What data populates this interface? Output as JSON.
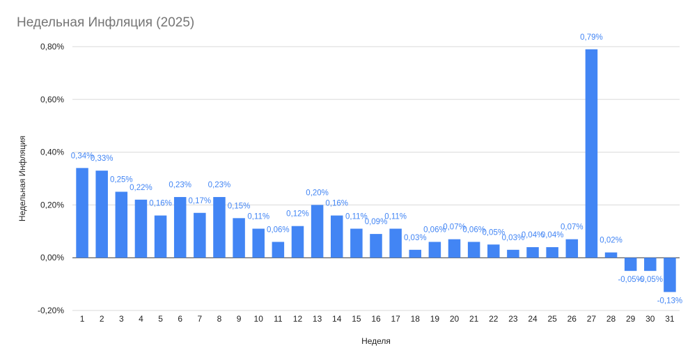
{
  "chart_data": {
    "type": "bar",
    "title": "Недельная Инфляция (2025)",
    "xlabel": "Неделя",
    "ylabel": "Недельная Инфляция",
    "categories": [
      "1",
      "2",
      "3",
      "4",
      "5",
      "6",
      "7",
      "8",
      "9",
      "10",
      "11",
      "12",
      "13",
      "14",
      "15",
      "16",
      "17",
      "18",
      "19",
      "20",
      "21",
      "22",
      "23",
      "24",
      "25",
      "26",
      "27",
      "28",
      "29",
      "30",
      "31"
    ],
    "values": [
      0.34,
      0.33,
      0.25,
      0.22,
      0.16,
      0.23,
      0.17,
      0.23,
      0.15,
      0.11,
      0.06,
      0.12,
      0.2,
      0.16,
      0.11,
      0.09,
      0.11,
      0.03,
      0.06,
      0.07,
      0.06,
      0.05,
      0.03,
      0.04,
      0.04,
      0.07,
      0.79,
      0.02,
      -0.05,
      -0.05,
      -0.13
    ],
    "data_labels": [
      "0,34%",
      "0,33%",
      "0,25%",
      "0,22%",
      "0,16%",
      "0,23%",
      "0,17%",
      "0,23%",
      "0,15%",
      "0,11%",
      "0,06%",
      "0,12%",
      "0,20%",
      "0,16%",
      "0,11%",
      "0,09%",
      "0,11%",
      "0,03%",
      "0,06%",
      "0,07%",
      "0,06%",
      "0,05%",
      "0,03%",
      "0,04%",
      "0,04%",
      "0,07%",
      "0,79%",
      "0,02%",
      "-0,05%",
      "-0,05%",
      "-0,13%"
    ],
    "ylim": [
      -0.2,
      0.8
    ],
    "yticks": [
      -0.2,
      0,
      0.2,
      0.4,
      0.6,
      0.8
    ],
    "ytick_labels": [
      "-0,20%",
      "0,00%",
      "0,20%",
      "0,40%",
      "0,60%",
      "0,80%"
    ],
    "grid": true,
    "legend": "none",
    "colors": {
      "bar": "#4285f4",
      "label": "#4285f4",
      "grid": "#d9d9d9",
      "title": "#757575",
      "axis_text": "#222222"
    }
  }
}
